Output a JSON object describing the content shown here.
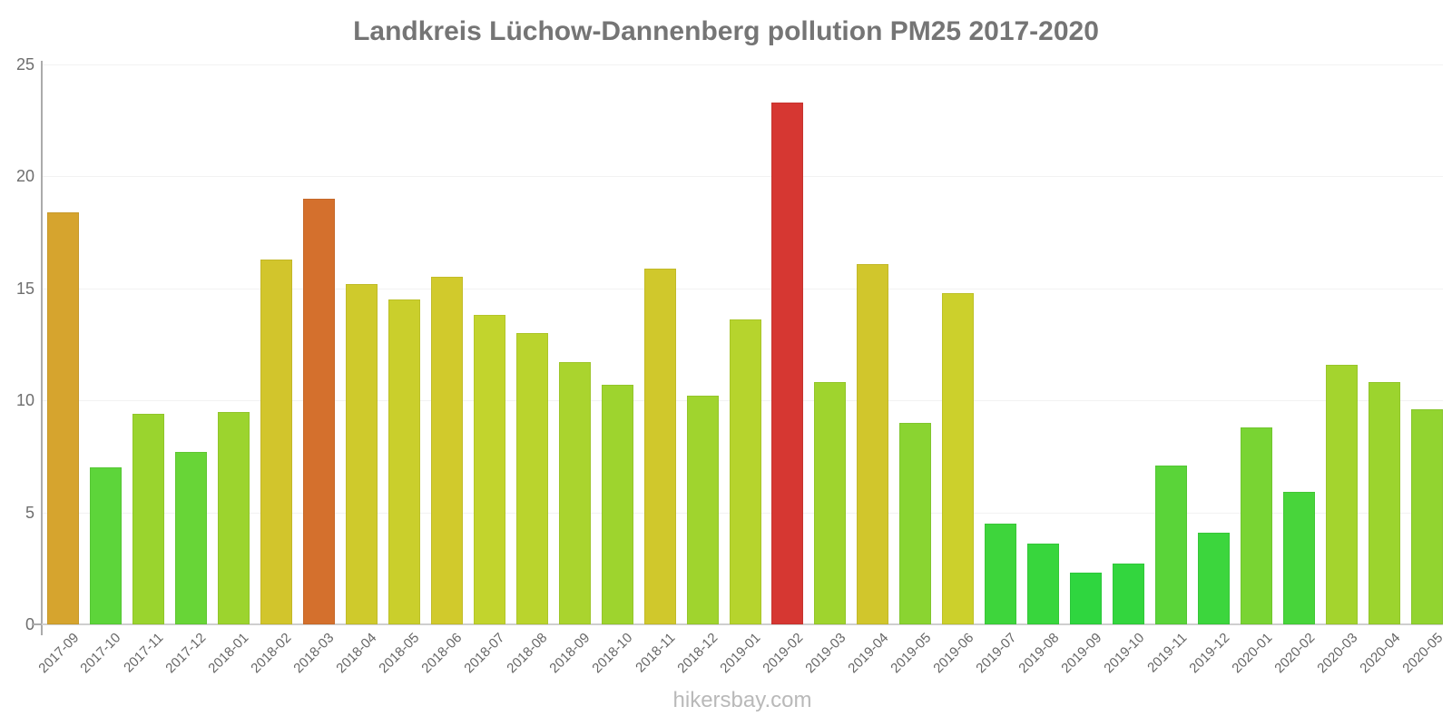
{
  "chart_data": {
    "type": "bar",
    "title": "Landkreis Lüchow-Dannenberg pollution PM25 2017-2020",
    "xlabel": "",
    "ylabel": "",
    "ylim": [
      0,
      25
    ],
    "y_ticks": [
      25,
      20,
      15,
      10,
      5,
      0
    ],
    "grid": true,
    "legend_position": "none",
    "categories": [
      "2017-09",
      "2017-10",
      "2017-11",
      "2017-12",
      "2018-01",
      "2018-02",
      "2018-03",
      "2018-04",
      "2018-05",
      "2018-06",
      "2018-07",
      "2018-08",
      "2018-09",
      "2018-10",
      "2018-11",
      "2018-12",
      "2019-01",
      "2019-02",
      "2019-03",
      "2019-04",
      "2019-05",
      "2019-06",
      "2019-07",
      "2019-08",
      "2019-09",
      "2019-10",
      "2019-11",
      "2019-12",
      "2020-01",
      "2020-02",
      "2020-03",
      "2020-04",
      "2020-05"
    ],
    "values": [
      18.4,
      7.0,
      9.4,
      7.7,
      9.5,
      16.3,
      19.0,
      15.2,
      14.5,
      15.5,
      13.8,
      13.0,
      11.7,
      10.7,
      15.9,
      10.2,
      13.6,
      23.3,
      10.8,
      16.1,
      9.0,
      14.8,
      4.5,
      3.6,
      2.3,
      2.7,
      7.1,
      4.1,
      8.8,
      5.9,
      11.6,
      10.8,
      9.6
    ],
    "bar_colors": [
      "#d6a42e",
      "#5dd53a",
      "#9ad42e",
      "#68d537",
      "#9cd42e",
      "#d2c52c",
      "#d4702d",
      "#cfca2c",
      "#cacf2c",
      "#d1ca2c",
      "#c2d42d",
      "#bad42d",
      "#aad42e",
      "#9ed42e",
      "#d0c82c",
      "#a0d42e",
      "#b6d42d",
      "#d63732",
      "#9fd42e",
      "#d1c62c",
      "#8ad431",
      "#ccd02c",
      "#3ed53c",
      "#38d63d",
      "#2fd63f",
      "#33d63e",
      "#5ad439",
      "#3cd63d",
      "#79d433",
      "#48d53b",
      "#a4d42e",
      "#9cd42e",
      "#92d430"
    ]
  },
  "axis_colors": {
    "grid": "#f2f2f2",
    "axis_line": "#ababab",
    "baseline": "#cfcfcf",
    "tick_text": "#6e6e6e",
    "x_tick_text": "#666666"
  },
  "title_color": "#757575",
  "footer": {
    "text": "hikersbay.com",
    "color": "#b9b9b9"
  }
}
